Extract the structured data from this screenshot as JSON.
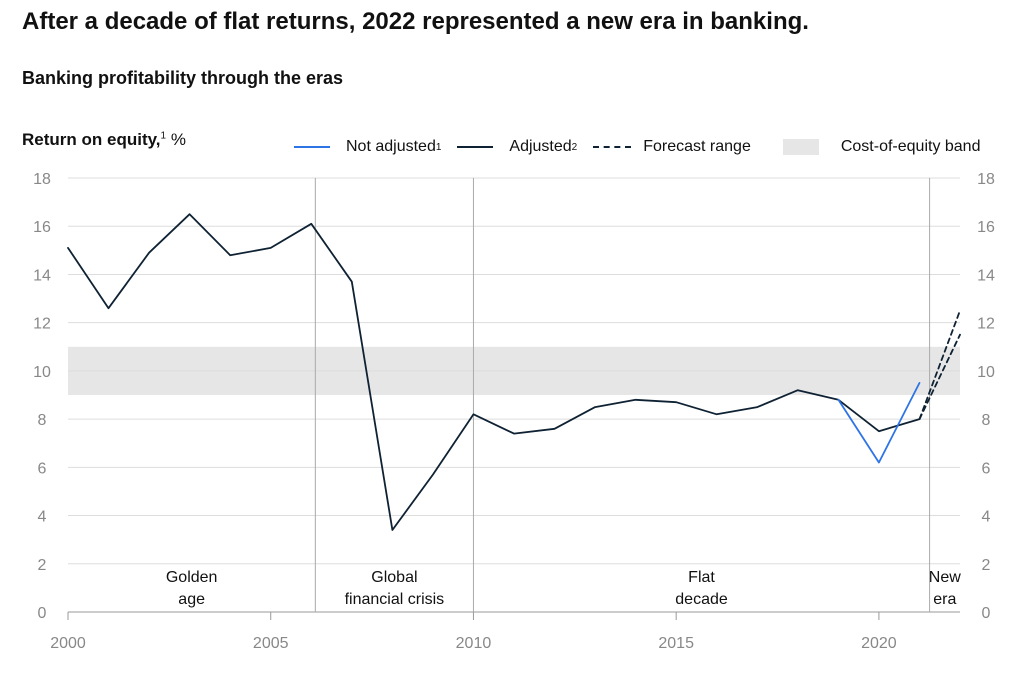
{
  "header": {
    "title": "After a decade of flat returns, 2022 represented a new era in banking.",
    "subtitle": "Banking profitability through the eras"
  },
  "chart_data": {
    "type": "line",
    "ylabel": "Return on equity,",
    "ylabel_sup": "1",
    "ylabel_unit": "%",
    "ylim": [
      0,
      18
    ],
    "yticks": [
      "0",
      "2",
      "4",
      "6",
      "8",
      "10",
      "12",
      "14",
      "16",
      "18"
    ],
    "xlim": [
      2000,
      2022
    ],
    "xticks": [
      "2000",
      "2005",
      "2010",
      "2015",
      "2020"
    ],
    "grid": true,
    "legend_placement": "top",
    "legend": [
      {
        "label": "Not adjusted",
        "sup": "1",
        "color": "#2e74e6",
        "style": "solid"
      },
      {
        "label": "Adjusted",
        "sup": "2",
        "color": "#0f2233",
        "style": "solid"
      },
      {
        "label": "Forecast range",
        "color": "#0f2233",
        "style": "dashed"
      },
      {
        "label": "Cost-of-equity band",
        "color": "#e6e6e6",
        "style": "band"
      }
    ],
    "band": {
      "y_low": 9,
      "y_high": 11,
      "color": "#e6e6e6"
    },
    "series": [
      {
        "name": "Adjusted",
        "color": "#0f2233",
        "style": "solid",
        "x": [
          2000,
          2001,
          2002,
          2003,
          2004,
          2005,
          2006,
          2007,
          2008,
          2009,
          2010,
          2011,
          2012,
          2013,
          2014,
          2015,
          2016,
          2017,
          2018,
          2019,
          2020,
          2021
        ],
        "y": [
          15.1,
          12.6,
          14.9,
          16.5,
          14.8,
          15.1,
          16.1,
          13.7,
          3.4,
          5.7,
          8.2,
          7.4,
          7.6,
          8.5,
          8.8,
          8.7,
          8.2,
          8.5,
          9.2,
          8.8,
          7.5,
          8.0
        ]
      },
      {
        "name": "Not adjusted",
        "color": "#2e74e6",
        "style": "solid",
        "x": [
          2019,
          2020,
          2021
        ],
        "y": [
          8.8,
          6.2,
          9.5
        ]
      },
      {
        "name": "Forecast range",
        "color": "#0f2233",
        "style": "dashed",
        "x": [
          2021,
          2022
        ],
        "y": [
          8.0,
          12.5
        ]
      },
      {
        "name": "Forecast range",
        "color": "#0f2233",
        "style": "dashed",
        "x": [
          2021,
          2022
        ],
        "y": [
          8.0,
          11.5
        ]
      }
    ],
    "eras": [
      {
        "label_lines": [
          "Golden",
          "age"
        ],
        "start": 2000,
        "end": 2006.1
      },
      {
        "label_lines": [
          "Global",
          "financial crisis"
        ],
        "start": 2006.1,
        "end": 2010
      },
      {
        "label_lines": [
          "Flat",
          "decade"
        ],
        "start": 2010,
        "end": 2021.25
      },
      {
        "label_lines": [
          "New",
          "era"
        ],
        "start": 2021.25,
        "end": 2022
      }
    ],
    "era_dividers": [
      2006.1,
      2010,
      2021.25
    ]
  }
}
